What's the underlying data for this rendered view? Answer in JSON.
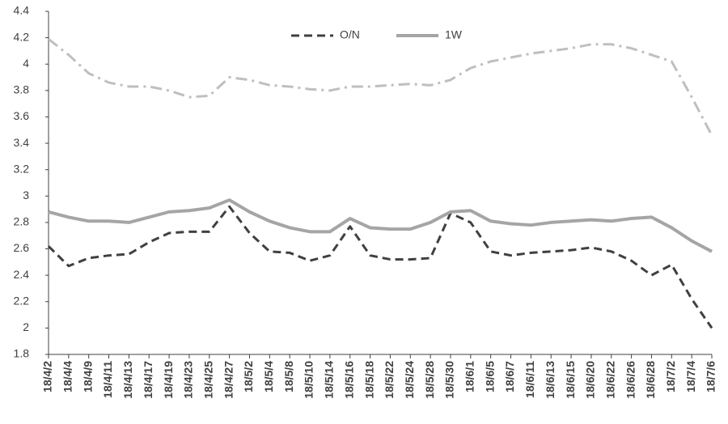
{
  "chart_data": {
    "type": "line",
    "categories": [
      "18/4/2",
      "18/4/4",
      "18/4/9",
      "18/4/11",
      "18/4/13",
      "18/4/17",
      "18/4/19",
      "18/4/23",
      "18/4/25",
      "18/4/27",
      "18/5/2",
      "18/5/4",
      "18/5/8",
      "18/5/10",
      "18/5/14",
      "18/5/16",
      "18/5/18",
      "18/5/22",
      "18/5/24",
      "18/5/28",
      "18/5/30",
      "18/6/1",
      "18/6/5",
      "18/6/7",
      "18/6/11",
      "18/6/13",
      "18/6/15",
      "18/6/20",
      "18/6/22",
      "18/6/26",
      "18/6/28",
      "18/7/2",
      "18/7/4",
      "18/7/6"
    ],
    "series": [
      {
        "name": "O/N",
        "color": "#404040",
        "line_style": "dashed",
        "values": [
          2.62,
          2.47,
          2.53,
          2.55,
          2.56,
          2.65,
          2.72,
          2.73,
          2.73,
          2.92,
          2.72,
          2.58,
          2.57,
          2.51,
          2.55,
          2.77,
          2.55,
          2.52,
          2.52,
          2.53,
          2.87,
          2.8,
          2.58,
          2.55,
          2.57,
          2.58,
          2.59,
          2.61,
          2.58,
          2.51,
          2.4,
          2.48,
          2.22,
          2.0
        ]
      },
      {
        "name": "1W",
        "color": "#a5a5a5",
        "line_style": "solid",
        "values": [
          2.88,
          2.84,
          2.81,
          2.81,
          2.8,
          2.84,
          2.88,
          2.89,
          2.91,
          2.97,
          2.88,
          2.81,
          2.76,
          2.73,
          2.73,
          2.83,
          2.76,
          2.75,
          2.75,
          2.8,
          2.88,
          2.89,
          2.81,
          2.79,
          2.78,
          2.8,
          2.81,
          2.82,
          2.81,
          2.83,
          2.84,
          2.76,
          2.66,
          2.58
        ]
      },
      {
        "color": "#bfbfbf",
        "line_style": "dash-dot",
        "values": [
          4.19,
          4.07,
          3.93,
          3.86,
          3.83,
          3.83,
          3.8,
          3.75,
          3.76,
          3.9,
          3.88,
          3.84,
          3.83,
          3.81,
          3.8,
          3.83,
          3.83,
          3.84,
          3.85,
          3.84,
          3.88,
          3.97,
          4.02,
          4.05,
          4.08,
          4.1,
          4.12,
          4.15,
          4.15,
          4.12,
          4.07,
          4.02,
          3.75,
          3.46
        ]
      }
    ],
    "ylim": [
      1.8,
      4.4
    ],
    "yticks": [
      1.8,
      2,
      2.2,
      2.4,
      2.6,
      2.8,
      3,
      3.2,
      3.4,
      3.6,
      3.8,
      4,
      4.2,
      4.4
    ],
    "grid": false,
    "legend": "top"
  }
}
